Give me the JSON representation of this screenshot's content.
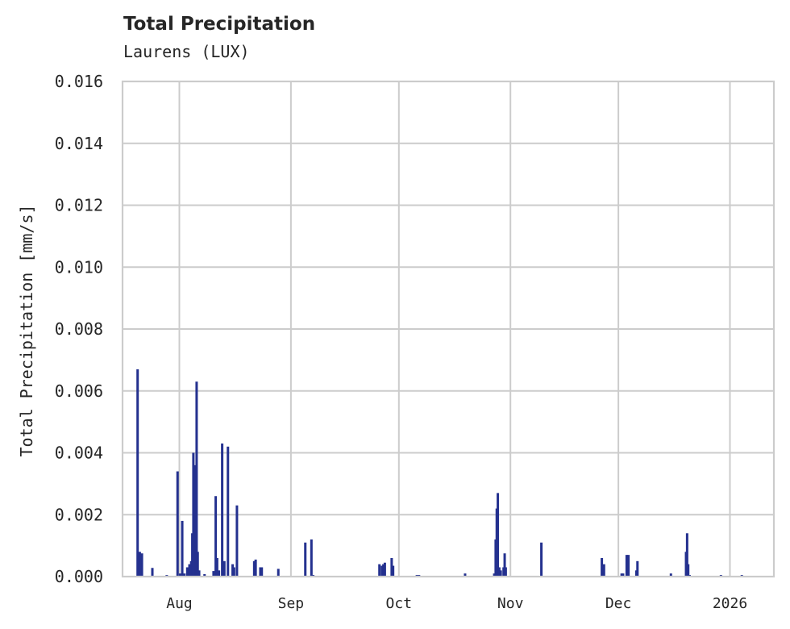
{
  "chart_data": {
    "type": "bar",
    "title": "Total Precipitation",
    "subtitle": "Laurens (LUX)",
    "xlabel": "",
    "ylabel": "Total Precipitation [mm/s]",
    "ylim": [
      0,
      0.016
    ],
    "yticks": [
      "0.000",
      "0.002",
      "0.004",
      "0.006",
      "0.008",
      "0.010",
      "0.012",
      "0.014",
      "0.016"
    ],
    "xticks": [
      {
        "label": "Aug",
        "day": 14
      },
      {
        "label": "Sep",
        "day": 45
      },
      {
        "label": "Oct",
        "day": 75
      },
      {
        "label": "Nov",
        "day": 106
      },
      {
        "label": "Dec",
        "day": 136
      },
      {
        "label": "2026",
        "day": 167
      }
    ],
    "x_range_days": [
      0,
      181
    ],
    "x_start_date": "2025-07-18",
    "grid": true,
    "legend": false,
    "bar_color": "#24318f",
    "series": [
      {
        "name": "Total Precipitation",
        "points": [
          [
            2.4,
            0.0067
          ],
          [
            3.0,
            0.0008
          ],
          [
            3.6,
            0.00075
          ],
          [
            6.5,
            0.00028
          ],
          [
            10.5,
            5e-05
          ],
          [
            13.5,
            0.0034
          ],
          [
            14.2,
            0.0001
          ],
          [
            14.8,
            0.0018
          ],
          [
            15.4,
            0.0001
          ],
          [
            16.2,
            0.0003
          ],
          [
            16.8,
            0.0004
          ],
          [
            17.3,
            0.0005
          ],
          [
            17.6,
            0.0014
          ],
          [
            17.9,
            0.004
          ],
          [
            18.2,
            0.0036
          ],
          [
            18.5,
            0.002
          ],
          [
            18.8,
            0.0063
          ],
          [
            19.1,
            0.0008
          ],
          [
            19.5,
            0.0002
          ],
          [
            21.0,
            8e-05
          ],
          [
            23.5,
            0.00018
          ],
          [
            24.1,
            0.0026
          ],
          [
            24.5,
            0.0006
          ],
          [
            25.0,
            0.0002
          ],
          [
            25.9,
            0.0043
          ],
          [
            26.5,
            0.0005
          ],
          [
            27.5,
            0.0042
          ],
          [
            28.8,
            0.0004
          ],
          [
            29.2,
            0.0003
          ],
          [
            30.0,
            0.0023
          ],
          [
            34.8,
            0.0005
          ],
          [
            35.2,
            0.00055
          ],
          [
            36.5,
            0.0003
          ],
          [
            36.9,
            0.0003
          ],
          [
            41.5,
            0.00025
          ],
          [
            49.0,
            0.0011
          ],
          [
            50.7,
            0.0012
          ],
          [
            51.2,
            5e-05
          ],
          [
            69.6,
            0.0004
          ],
          [
            70.3,
            0.00035
          ],
          [
            70.7,
            0.0004
          ],
          [
            71.1,
            0.00045
          ],
          [
            73.0,
            0.0006
          ],
          [
            73.4,
            0.00035
          ],
          [
            80.0,
            5e-05
          ],
          [
            80.6,
            5e-05
          ],
          [
            93.4,
            0.0001
          ],
          [
            101.5,
            0.0001
          ],
          [
            101.9,
            0.0012
          ],
          [
            102.2,
            0.0022
          ],
          [
            102.5,
            0.0027
          ],
          [
            102.9,
            0.0003
          ],
          [
            103.3,
            0.0002
          ],
          [
            104.1,
            0.0003
          ],
          [
            104.4,
            0.00075
          ],
          [
            104.7,
            0.0003
          ],
          [
            114.6,
            0.0011
          ],
          [
            131.4,
            0.0006
          ],
          [
            132.0,
            0.0004
          ],
          [
            136.9,
            0.0001
          ],
          [
            137.3,
            0.0001
          ],
          [
            138.3,
            0.0007
          ],
          [
            138.8,
            0.0007
          ],
          [
            141.0,
            0.0002
          ],
          [
            141.3,
            0.0005
          ],
          [
            150.6,
            0.0001
          ],
          [
            154.8,
            0.0008
          ],
          [
            155.1,
            0.0014
          ],
          [
            155.4,
            0.0004
          ],
          [
            155.8,
            5e-05
          ],
          [
            164.5,
            5e-05
          ],
          [
            170.3,
            5e-05
          ]
        ]
      }
    ]
  }
}
